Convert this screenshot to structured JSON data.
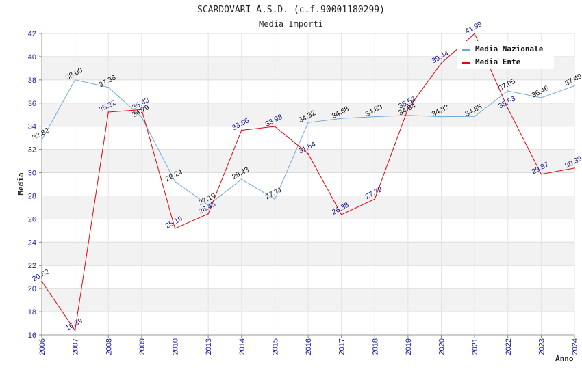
{
  "chart_data": {
    "type": "line",
    "title": "SCARDOVARI A.S.D. (c.f.90001180299)",
    "subtitle": "Media Importi",
    "xlabel": "Anno",
    "ylabel": "Media",
    "ylim": [
      16,
      42
    ],
    "y_ticks": [
      "16",
      "18",
      "20",
      "22",
      "24",
      "26",
      "28",
      "30",
      "32",
      "34",
      "36",
      "38",
      "40",
      "42"
    ],
    "categories": [
      "2006",
      "2007",
      "2008",
      "2009",
      "2010",
      "2013",
      "2014",
      "2015",
      "2016",
      "2017",
      "2018",
      "2019",
      "2020",
      "2021",
      "2022",
      "2023",
      "2024"
    ],
    "grid": true,
    "legend_position": "top-right",
    "series": [
      {
        "name": "Media Nazionale",
        "color": "#6fa8dc",
        "label_color": "#111111",
        "values": [
          32.82,
          38.0,
          37.36,
          34.79,
          29.24,
          27.19,
          29.43,
          27.71,
          34.32,
          34.68,
          34.83,
          34.94,
          34.83,
          34.85,
          37.05,
          36.46,
          37.49
        ],
        "labels": [
          "32.82",
          "38.00",
          "37.36",
          "34.79",
          "29.24",
          "27.19",
          "29.43",
          "27.71",
          "34.32",
          "34.68",
          "34.83",
          "34.94",
          "34.83",
          "34.85",
          "37.05",
          "36.46",
          "37.49"
        ]
      },
      {
        "name": "Media Ente",
        "color": "#e8000b",
        "label_color": "#1a1a8c",
        "values": [
          20.62,
          16.39,
          35.22,
          35.43,
          25.19,
          26.45,
          33.66,
          33.98,
          31.64,
          26.38,
          27.72,
          35.52,
          39.44,
          41.99,
          35.53,
          29.87,
          30.39
        ],
        "labels": [
          "20.62",
          "16.39",
          "35.22",
          "35.43",
          "25.19",
          "26.45",
          "33.66",
          "33.98",
          "31.64",
          "26.38",
          "27.72",
          "35.52",
          "39.44",
          "41.99",
          "35.53",
          "29.87",
          "30.39"
        ]
      }
    ]
  }
}
